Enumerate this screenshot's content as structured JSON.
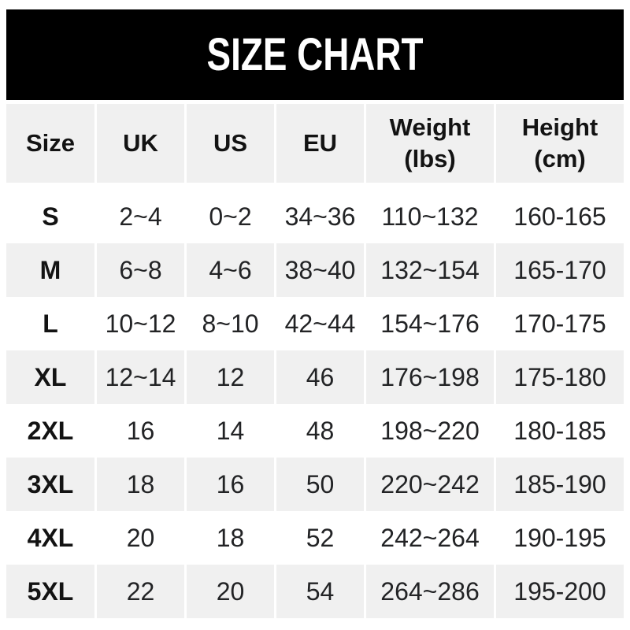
{
  "banner": {
    "title": "SIZE CHART",
    "bg_color": "#000000",
    "text_color": "#ffffff"
  },
  "colors": {
    "stripe_gray": "#f0f0f0",
    "page_bg": "#ffffff",
    "data_text": "#222325",
    "bold_text": "#131313"
  },
  "table": {
    "columns": [
      {
        "label": "Size"
      },
      {
        "label": "UK"
      },
      {
        "label": "US"
      },
      {
        "label": "EU"
      },
      {
        "label": "Weight",
        "sub": "(lbs)"
      },
      {
        "label": "Height",
        "sub": "(cm)"
      }
    ],
    "rows": [
      {
        "size": "S",
        "uk": "2~4",
        "us": "0~2",
        "eu": "34~36",
        "weight": "110~132",
        "height": "160-165"
      },
      {
        "size": "M",
        "uk": "6~8",
        "us": "4~6",
        "eu": "38~40",
        "weight": "132~154",
        "height": "165-170"
      },
      {
        "size": "L",
        "uk": "10~12",
        "us": "8~10",
        "eu": "42~44",
        "weight": "154~176",
        "height": "170-175"
      },
      {
        "size": "XL",
        "uk": "12~14",
        "us": "12",
        "eu": "46",
        "weight": "176~198",
        "height": "175-180"
      },
      {
        "size": "2XL",
        "uk": "16",
        "us": "14",
        "eu": "48",
        "weight": "198~220",
        "height": "180-185"
      },
      {
        "size": "3XL",
        "uk": "18",
        "us": "16",
        "eu": "50",
        "weight": "220~242",
        "height": "185-190"
      },
      {
        "size": "4XL",
        "uk": "20",
        "us": "18",
        "eu": "52",
        "weight": "242~264",
        "height": "190-195"
      },
      {
        "size": "5XL",
        "uk": "22",
        "us": "20",
        "eu": "54",
        "weight": "264~286",
        "height": "195-200"
      }
    ]
  },
  "chart_data": {
    "type": "table",
    "title": "SIZE CHART",
    "columns": [
      "Size",
      "UK",
      "US",
      "EU",
      "Weight (lbs)",
      "Height (cm)"
    ],
    "rows": [
      [
        "S",
        "2~4",
        "0~2",
        "34~36",
        "110~132",
        "160-165"
      ],
      [
        "M",
        "6~8",
        "4~6",
        "38~40",
        "132~154",
        "165-170"
      ],
      [
        "L",
        "10~12",
        "8~10",
        "42~44",
        "154~176",
        "170-175"
      ],
      [
        "XL",
        "12~14",
        "12",
        "46",
        "176~198",
        "175-180"
      ],
      [
        "2XL",
        "16",
        "14",
        "48",
        "198~220",
        "180-185"
      ],
      [
        "3XL",
        "18",
        "16",
        "50",
        "220~242",
        "185-190"
      ],
      [
        "4XL",
        "20",
        "18",
        "52",
        "242~264",
        "190-195"
      ],
      [
        "5XL",
        "22",
        "20",
        "54",
        "264~286",
        "195-200"
      ]
    ],
    "layout": {
      "striped_rows": [
        "header",
        "M",
        "XL",
        "3XL",
        "5XL"
      ],
      "stripe_color": "#f0f0f0",
      "banner_bg": "#000000"
    }
  }
}
